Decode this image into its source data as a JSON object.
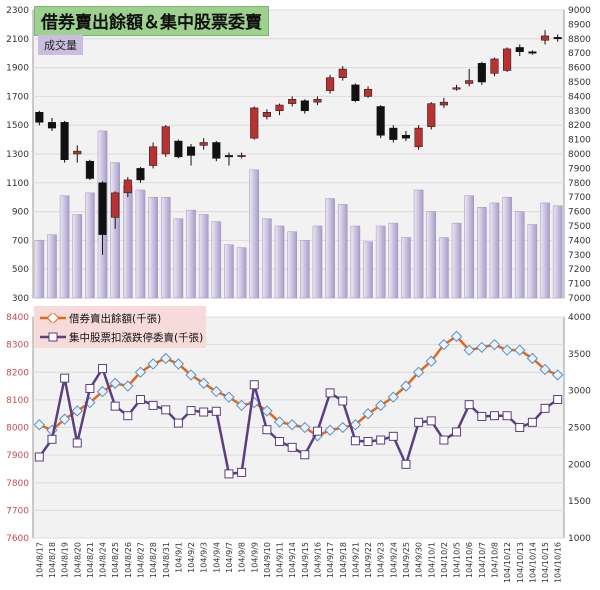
{
  "title": "借券賣出餘額＆集中股票委賣",
  "volume_label": "成交量",
  "colors": {
    "title_bg": "#9ed08f",
    "volume_label_bg": "#c9bde0",
    "volume_bar": "#c7bedd",
    "candle_up": "#b83232",
    "candle_down": "#111111",
    "lending_line": "#e06818",
    "sell_line": "#5a3f82",
    "legend_bg": "#f7dada",
    "plot_bg": "#f2f2f2"
  },
  "chart_data": [
    {
      "type": "candlestick+bar",
      "panel": "top",
      "y_left_ticks": [
        "300",
        "500",
        "700",
        "900",
        "1100",
        "1300",
        "1500",
        "1700",
        "1900",
        "2100",
        "2300"
      ],
      "y_left_range": [
        300,
        2300
      ],
      "y_right_ticks": [
        "7000",
        "7100",
        "7200",
        "7300",
        "7400",
        "7500",
        "7600",
        "7700",
        "7800",
        "7900",
        "8000",
        "8100",
        "8200",
        "8300",
        "8400",
        "8500",
        "8600",
        "8700",
        "8800",
        "8900",
        "9000"
      ],
      "y_right_range": [
        7000,
        9000
      ],
      "volume": [
        700,
        740,
        1010,
        880,
        1030,
        1460,
        1240,
        1080,
        1050,
        1000,
        1000,
        850,
        910,
        880,
        830,
        670,
        650,
        1190,
        850,
        800,
        760,
        700,
        800,
        990,
        950,
        800,
        690,
        800,
        820,
        720,
        1050,
        900,
        720,
        820,
        1010,
        930,
        960,
        1000,
        900,
        810,
        960,
        940
      ],
      "candles": [
        {
          "o": 8290,
          "c": 8220,
          "h": 8300,
          "l": 8200
        },
        {
          "o": 8220,
          "c": 8180,
          "h": 8250,
          "l": 8160
        },
        {
          "o": 8220,
          "c": 7960,
          "h": 8230,
          "l": 7940
        },
        {
          "o": 8000,
          "c": 8020,
          "h": 8060,
          "l": 7940
        },
        {
          "o": 7950,
          "c": 7830,
          "h": 7960,
          "l": 7820
        },
        {
          "o": 7800,
          "c": 7440,
          "h": 7810,
          "l": 7300
        },
        {
          "o": 7560,
          "c": 7730,
          "h": 7740,
          "l": 7480
        },
        {
          "o": 7730,
          "c": 7820,
          "h": 7840,
          "l": 7700
        },
        {
          "o": 7900,
          "c": 7820,
          "h": 7910,
          "l": 7800
        },
        {
          "o": 7920,
          "c": 8050,
          "h": 8080,
          "l": 7900
        },
        {
          "o": 8000,
          "c": 8190,
          "h": 8200,
          "l": 7980
        },
        {
          "o": 8090,
          "c": 7980,
          "h": 8100,
          "l": 7970
        },
        {
          "o": 8050,
          "c": 7990,
          "h": 8070,
          "l": 7920
        },
        {
          "o": 8060,
          "c": 8080,
          "h": 8110,
          "l": 8030
        },
        {
          "o": 8080,
          "c": 7970,
          "h": 8090,
          "l": 7950
        },
        {
          "o": 7990,
          "c": 7980,
          "h": 8010,
          "l": 7920
        },
        {
          "o": 7990,
          "c": 7990,
          "h": 8010,
          "l": 7970
        },
        {
          "o": 8110,
          "c": 8320,
          "h": 8330,
          "l": 8100
        },
        {
          "o": 8260,
          "c": 8290,
          "h": 8310,
          "l": 8240
        },
        {
          "o": 8300,
          "c": 8340,
          "h": 8350,
          "l": 8270
        },
        {
          "o": 8350,
          "c": 8380,
          "h": 8400,
          "l": 8330
        },
        {
          "o": 8370,
          "c": 8300,
          "h": 8380,
          "l": 8280
        },
        {
          "o": 8360,
          "c": 8380,
          "h": 8400,
          "l": 8340
        },
        {
          "o": 8440,
          "c": 8530,
          "h": 8550,
          "l": 8420
        },
        {
          "o": 8530,
          "c": 8590,
          "h": 8610,
          "l": 8510
        },
        {
          "o": 8480,
          "c": 8370,
          "h": 8490,
          "l": 8360
        },
        {
          "o": 8400,
          "c": 8450,
          "h": 8470,
          "l": 8390
        },
        {
          "o": 8330,
          "c": 8130,
          "h": 8340,
          "l": 8110
        },
        {
          "o": 8180,
          "c": 8100,
          "h": 8200,
          "l": 8080
        },
        {
          "o": 8130,
          "c": 8110,
          "h": 8160,
          "l": 8090
        },
        {
          "o": 8050,
          "c": 8180,
          "h": 8200,
          "l": 8030
        },
        {
          "o": 8190,
          "c": 8350,
          "h": 8360,
          "l": 8170
        },
        {
          "o": 8340,
          "c": 8360,
          "h": 8390,
          "l": 8320
        },
        {
          "o": 8450,
          "c": 8460,
          "h": 8480,
          "l": 8440
        },
        {
          "o": 8490,
          "c": 8510,
          "h": 8590,
          "l": 8470
        },
        {
          "o": 8630,
          "c": 8500,
          "h": 8640,
          "l": 8480
        },
        {
          "o": 8560,
          "c": 8660,
          "h": 8670,
          "l": 8540
        },
        {
          "o": 8580,
          "c": 8730,
          "h": 8740,
          "l": 8570
        },
        {
          "o": 8740,
          "c": 8710,
          "h": 8760,
          "l": 8680
        },
        {
          "o": 8710,
          "c": 8700,
          "h": 8720,
          "l": 8690
        },
        {
          "o": 8790,
          "c": 8820,
          "h": 8860,
          "l": 8760
        },
        {
          "o": 8810,
          "c": 8800,
          "h": 8830,
          "l": 8780
        }
      ]
    },
    {
      "type": "line",
      "panel": "bottom",
      "y_left_ticks": [
        "7600",
        "7700",
        "7800",
        "7900",
        "8000",
        "8100",
        "8200",
        "8300",
        "8400"
      ],
      "y_left_range": [
        7600,
        8400
      ],
      "y_right_ticks": [
        "1000",
        "1500",
        "2000",
        "2500",
        "3000",
        "3500",
        "4000"
      ],
      "y_right_range": [
        1000,
        4000
      ],
      "categories": [
        "104/8/17",
        "104/8/18",
        "104/8/19",
        "104/8/20",
        "104/8/21",
        "104/8/24",
        "104/8/25",
        "104/8/26",
        "104/8/27",
        "104/8/28",
        "104/8/31",
        "104/9/1",
        "104/9/2",
        "104/9/3",
        "104/9/4",
        "104/9/7",
        "104/9/8",
        "104/9/9",
        "104/9/10",
        "104/9/11",
        "104/9/14",
        "104/9/15",
        "104/9/16",
        "104/9/17",
        "104/9/18",
        "104/9/21",
        "104/9/22",
        "104/9/23",
        "104/9/24",
        "104/9/25",
        "104/9/30",
        "104/10/1",
        "104/10/2",
        "104/10/5",
        "104/10/6",
        "104/10/7",
        "104/10/8",
        "104/10/12",
        "104/10/13",
        "104/10/14",
        "104/10/15",
        "104/10/16"
      ],
      "series": [
        {
          "name": "借券賣出餘額(千張)",
          "axis": "left",
          "values": [
            8010,
            7990,
            8030,
            8060,
            8090,
            8130,
            8160,
            8150,
            8200,
            8230,
            8250,
            8230,
            8190,
            8160,
            8130,
            8110,
            8080,
            8090,
            8060,
            8020,
            8010,
            8000,
            7970,
            7990,
            8000,
            8010,
            8050,
            8080,
            8110,
            8150,
            8200,
            8240,
            8300,
            8330,
            8280,
            8290,
            8300,
            8280,
            8280,
            8250,
            8210,
            8190
          ]
        },
        {
          "name": "集中股票扣漲跌停委賣(千張)",
          "axis": "right",
          "values": [
            2100,
            2340,
            3170,
            2290,
            3030,
            3300,
            2790,
            2660,
            2880,
            2800,
            2740,
            2560,
            2730,
            2710,
            2720,
            1870,
            1890,
            3080,
            2470,
            2310,
            2230,
            2130,
            2450,
            2970,
            2860,
            2320,
            2310,
            2330,
            2380,
            2000,
            2570,
            2590,
            2330,
            2440,
            2810,
            2650,
            2660,
            2660,
            2500,
            2570,
            2760,
            2880
          ]
        }
      ]
    }
  ]
}
